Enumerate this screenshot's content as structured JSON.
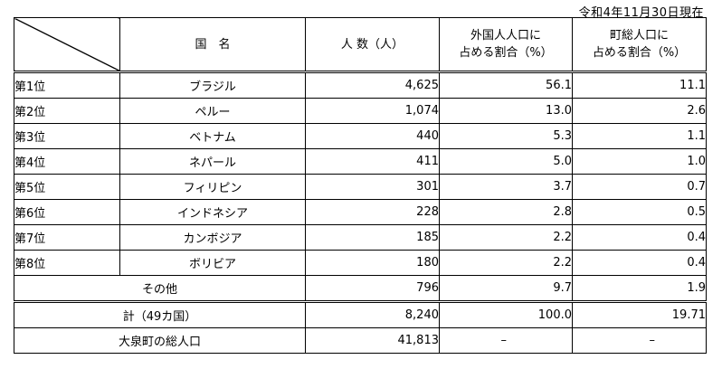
{
  "as_of_date": "令和4年11月30日現在",
  "headers": {
    "country": "国　名",
    "population": "人 数（人）",
    "share_foreign_line1": "外国人人口に",
    "share_foreign_line2": "占める割合（%）",
    "share_town_line1": "町総人口に",
    "share_town_line2": "占める割合（%）"
  },
  "rows": [
    {
      "rank": "第1位",
      "country": "ブラジル",
      "population": "4,625",
      "share_foreign": "56.1",
      "share_town": "11.1"
    },
    {
      "rank": "第2位",
      "country": "ペルー",
      "population": "1,074",
      "share_foreign": "13.0",
      "share_town": "2.6"
    },
    {
      "rank": "第3位",
      "country": "ベトナム",
      "population": "440",
      "share_foreign": "5.3",
      "share_town": "1.1"
    },
    {
      "rank": "第4位",
      "country": "ネパール",
      "population": "411",
      "share_foreign": "5.0",
      "share_town": "1.0"
    },
    {
      "rank": "第5位",
      "country": "フィリピン",
      "population": "301",
      "share_foreign": "3.7",
      "share_town": "0.7"
    },
    {
      "rank": "第6位",
      "country": "インドネシア",
      "population": "228",
      "share_foreign": "2.8",
      "share_town": "0.5"
    },
    {
      "rank": "第7位",
      "country": "カンボジア",
      "population": "185",
      "share_foreign": "2.2",
      "share_town": "0.4"
    },
    {
      "rank": "第8位",
      "country": "ボリビア",
      "population": "180",
      "share_foreign": "2.2",
      "share_town": "0.4"
    }
  ],
  "other": {
    "label": "その他",
    "population": "796",
    "share_foreign": "9.7",
    "share_town": "1.9"
  },
  "total": {
    "label": "計（49カ国）",
    "population": "8,240",
    "share_foreign": "100.0",
    "share_town": "19.71"
  },
  "town_total": {
    "label": "大泉町の総人口",
    "population": "41,813",
    "share_foreign": "–",
    "share_town": "–"
  }
}
